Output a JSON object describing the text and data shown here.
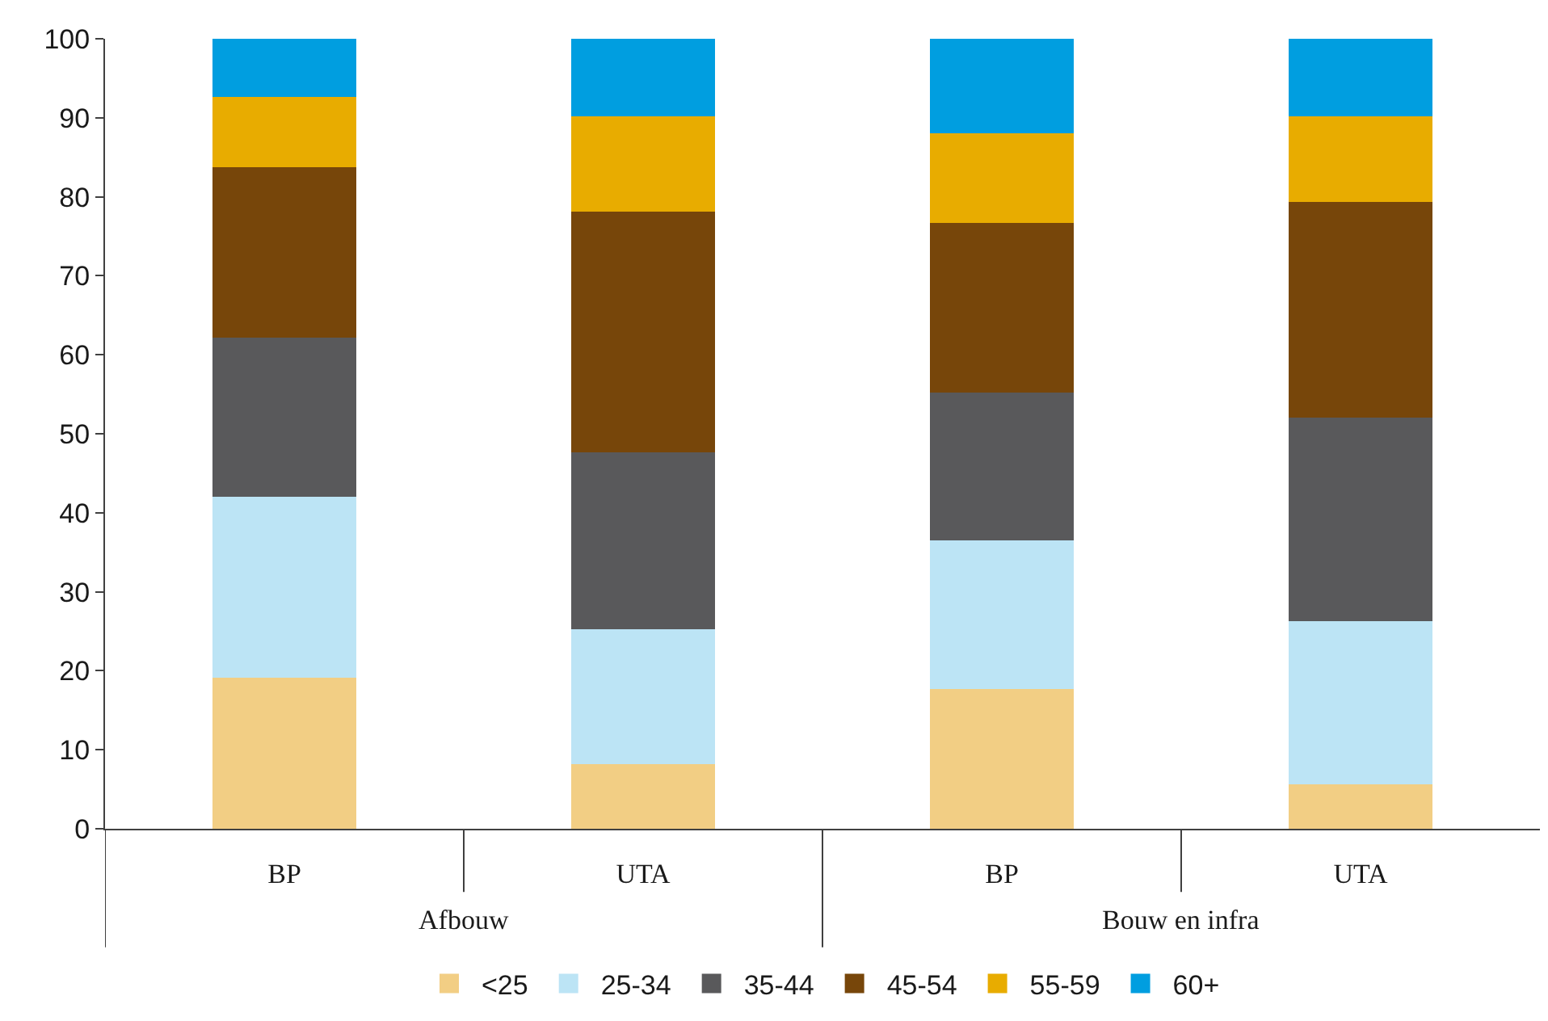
{
  "chart_data": {
    "type": "bar",
    "stacked": true,
    "categories": [
      "BP",
      "UTA",
      "BP",
      "UTA"
    ],
    "annotations": [
      "Afbouw",
      "Bouw en infra"
    ],
    "ylim": [
      0,
      100
    ],
    "yticks": [
      0,
      10,
      20,
      30,
      40,
      50,
      60,
      70,
      80,
      90,
      100
    ],
    "legend": "bottom",
    "series": [
      {
        "name": "<25",
        "color": "#f2ce84",
        "values": [
          19.1,
          8.2,
          17.7,
          5.6
        ]
      },
      {
        "name": "25-34",
        "color": "#bce4f5",
        "values": [
          22.9,
          17.1,
          18.8,
          20.7
        ]
      },
      {
        "name": "35-44",
        "color": "#59595b",
        "values": [
          20.2,
          22.3,
          18.7,
          25.7
        ]
      },
      {
        "name": "45-54",
        "color": "#77460a",
        "values": [
          21.5,
          30.5,
          21.5,
          27.3
        ]
      },
      {
        "name": "55-59",
        "color": "#e8ac00",
        "values": [
          8.9,
          12.1,
          11.3,
          10.9
        ]
      },
      {
        "name": "60+",
        "color": "#009ee0",
        "values": [
          7.4,
          9.8,
          12.0,
          9.8
        ]
      }
    ]
  }
}
